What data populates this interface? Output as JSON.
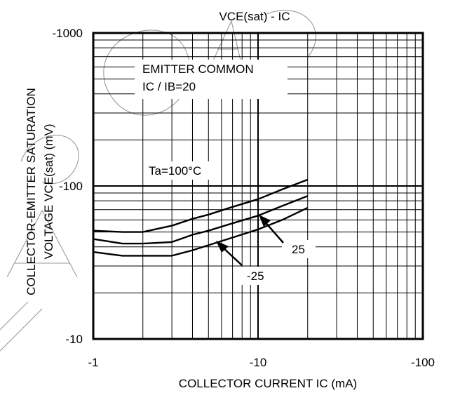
{
  "chart_data": {
    "type": "line",
    "title": "VCE(sat) - IC",
    "xlabel": "COLLECTOR CURRENT  IC (mA)",
    "ylabel_line1": "COLLECTOR-EMITTER SATURATION",
    "ylabel_line2": "VOLTAGE  VCE(sat) (mV)",
    "x_scale": "log",
    "y_scale": "log",
    "xlim": [
      -1,
      -100
    ],
    "ylim": [
      -10,
      -1000
    ],
    "grid": true,
    "x_ticks": [
      {
        "value": -1,
        "label": "-1"
      },
      {
        "value": -10,
        "label": "-10"
      },
      {
        "value": -100,
        "label": "-100"
      }
    ],
    "y_ticks": [
      {
        "value": -1000,
        "label": "-1000"
      },
      {
        "value": -100,
        "label": "-100"
      },
      {
        "value": -10,
        "label": "-10"
      }
    ],
    "annotations": {
      "condition_line1": "EMITTER COMMON",
      "condition_line2": "IC / IB=20",
      "ta_label": "Ta=100°C",
      "label_25": "25",
      "label_m25": "-25"
    },
    "series": [
      {
        "name": "Ta=100°C",
        "x": [
          -1,
          -1.5,
          -2,
          -3,
          -4,
          -5,
          -7,
          -10,
          -14,
          -20
        ],
        "y": [
          -51,
          -50,
          -50,
          -55,
          -61,
          -65,
          -73,
          -82,
          -95,
          -110
        ]
      },
      {
        "name": "25",
        "x": [
          -1,
          -1.5,
          -2,
          -3,
          -4,
          -5,
          -7,
          -10,
          -14,
          -20
        ],
        "y": [
          -45,
          -42,
          -42,
          -43,
          -48,
          -51,
          -57,
          -64,
          -74,
          -86
        ]
      },
      {
        "name": "-25",
        "x": [
          -1,
          -1.5,
          -2,
          -3,
          -4,
          -5,
          -7,
          -10,
          -14,
          -20
        ],
        "y": [
          -37,
          -35,
          -35,
          -35,
          -38,
          -41,
          -46,
          -52,
          -60,
          -72
        ]
      }
    ]
  }
}
